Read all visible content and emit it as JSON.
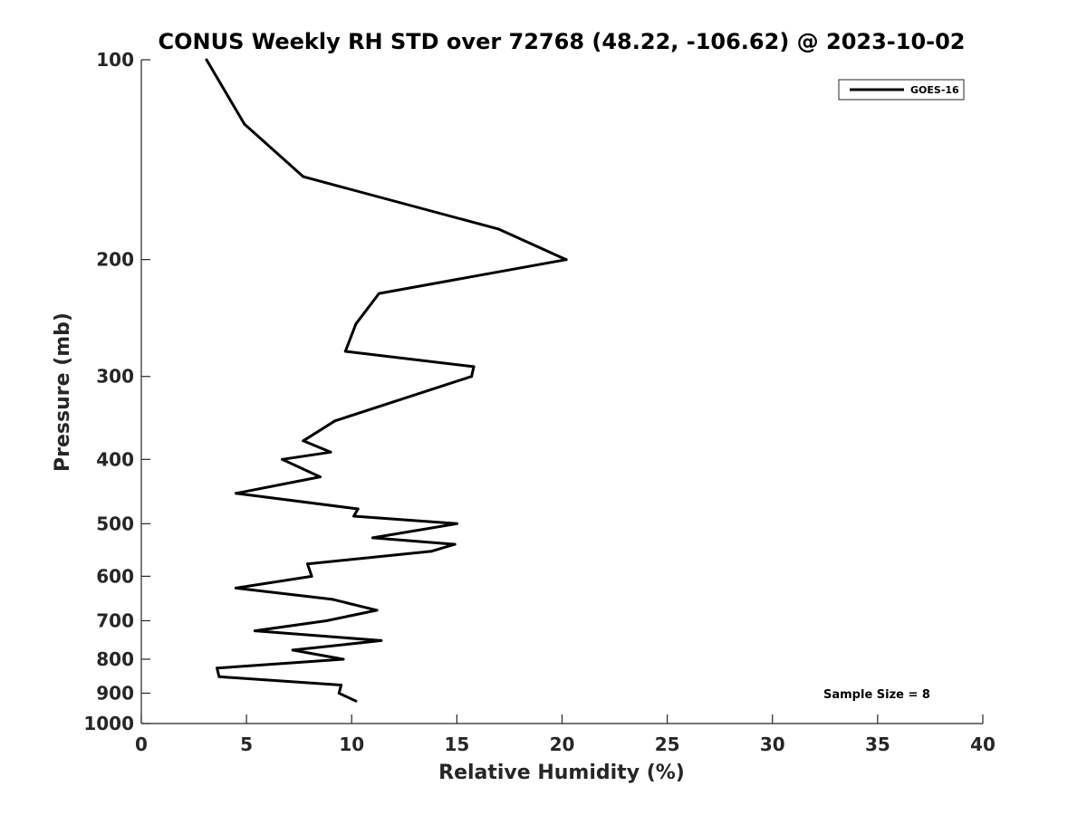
{
  "chart_data": {
    "type": "line",
    "title": "CONUS Weekly RH STD over 72768 (48.22, -106.62) @ 2023-10-02",
    "xlabel": "Relative Humidity (%)",
    "ylabel": "Pressure (mb)",
    "xlim": [
      0,
      40
    ],
    "ylim": [
      1000,
      100
    ],
    "y_scale": "log",
    "x_ticks": [
      "0",
      "5",
      "10",
      "15",
      "20",
      "25",
      "30",
      "35",
      "40"
    ],
    "y_ticks": [
      {
        "value": 100,
        "label": "100"
      },
      {
        "value": 200,
        "label": "200"
      },
      {
        "value": 300,
        "label": "300"
      },
      {
        "value": 400,
        "label": "400"
      },
      {
        "value": 500,
        "label": "500"
      },
      {
        "value": 600,
        "label": "600"
      },
      {
        "value": 700,
        "label": "700"
      },
      {
        "value": 800,
        "label": "800"
      },
      {
        "value": 900,
        "label": "900"
      },
      {
        "value": 1000,
        "label": "1000"
      }
    ],
    "grid": false,
    "legend_position": "top-right",
    "series": [
      {
        "name": "GOES-16",
        "color": "#000000",
        "points": [
          {
            "x": 3.1,
            "p": 100
          },
          {
            "x": 4.9,
            "p": 125
          },
          {
            "x": 7.7,
            "p": 150
          },
          {
            "x": 17.0,
            "p": 180
          },
          {
            "x": 20.2,
            "p": 200
          },
          {
            "x": 11.3,
            "p": 225
          },
          {
            "x": 10.2,
            "p": 250
          },
          {
            "x": 9.7,
            "p": 275
          },
          {
            "x": 15.8,
            "p": 290
          },
          {
            "x": 15.7,
            "p": 300
          },
          {
            "x": 9.2,
            "p": 350
          },
          {
            "x": 7.7,
            "p": 375
          },
          {
            "x": 9.0,
            "p": 390
          },
          {
            "x": 6.7,
            "p": 400
          },
          {
            "x": 8.5,
            "p": 425
          },
          {
            "x": 4.5,
            "p": 450
          },
          {
            "x": 10.3,
            "p": 475
          },
          {
            "x": 10.1,
            "p": 487
          },
          {
            "x": 15.0,
            "p": 500
          },
          {
            "x": 11.0,
            "p": 525
          },
          {
            "x": 14.9,
            "p": 537
          },
          {
            "x": 13.8,
            "p": 550
          },
          {
            "x": 7.9,
            "p": 575
          },
          {
            "x": 8.1,
            "p": 600
          },
          {
            "x": 4.5,
            "p": 625
          },
          {
            "x": 9.1,
            "p": 650
          },
          {
            "x": 11.2,
            "p": 675
          },
          {
            "x": 8.8,
            "p": 700
          },
          {
            "x": 5.4,
            "p": 725
          },
          {
            "x": 11.4,
            "p": 750
          },
          {
            "x": 7.2,
            "p": 775
          },
          {
            "x": 9.6,
            "p": 800
          },
          {
            "x": 3.6,
            "p": 825
          },
          {
            "x": 3.7,
            "p": 850
          },
          {
            "x": 9.5,
            "p": 875
          },
          {
            "x": 9.4,
            "p": 900
          },
          {
            "x": 10.2,
            "p": 925
          }
        ]
      }
    ],
    "annotations": [
      {
        "text": "Sample Size = 8",
        "position": "bottom-right"
      }
    ]
  }
}
